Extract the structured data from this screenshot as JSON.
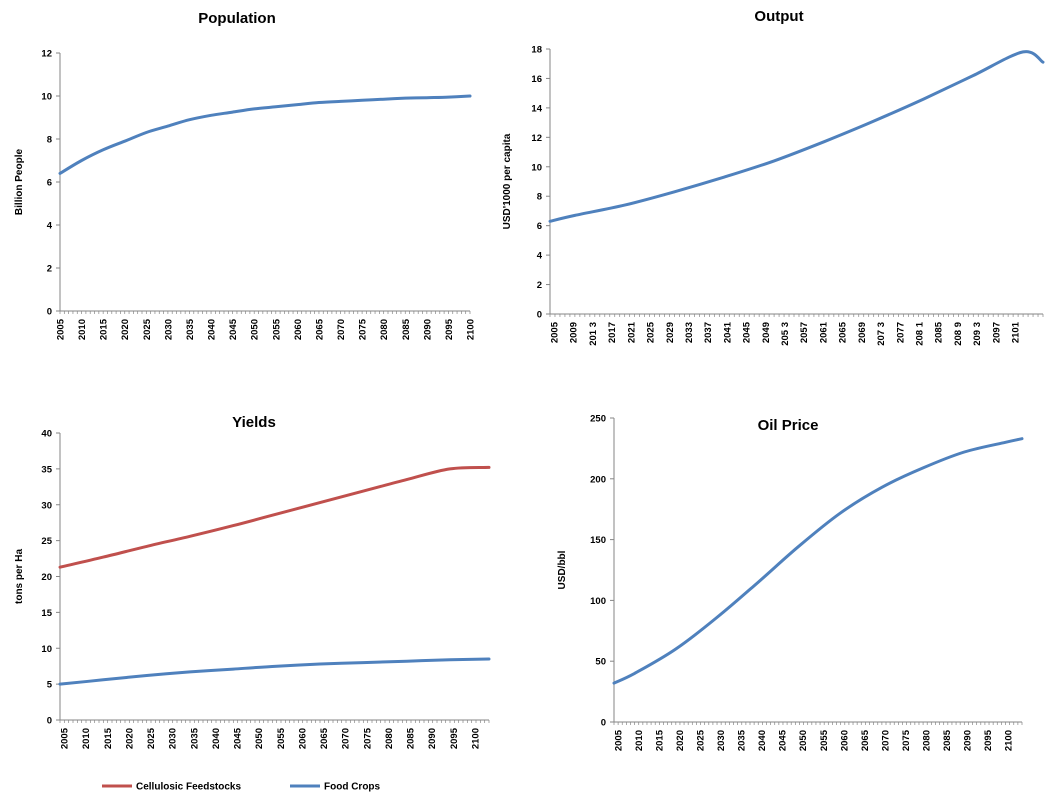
{
  "chart_data": [
    {
      "id": "population",
      "type": "line",
      "title": "Population",
      "ylabel": "Billion People",
      "ylim": [
        0,
        12
      ],
      "yticks": [
        0,
        2,
        4,
        6,
        8,
        10,
        12
      ],
      "xlim": [
        2005,
        2100
      ],
      "xticks": [
        "2005",
        "2010",
        "2015",
        "2020",
        "2025",
        "2030",
        "2035",
        "2040",
        "2045",
        "2050",
        "2055",
        "2060",
        "2065",
        "2070",
        "2075",
        "2080",
        "2085",
        "2090",
        "2095",
        "2100"
      ],
      "legend": "none",
      "grid": false,
      "series": [
        {
          "color": "#4f81bd",
          "x": [
            2005,
            2010,
            2015,
            2020,
            2025,
            2030,
            2035,
            2040,
            2045,
            2050,
            2055,
            2060,
            2065,
            2070,
            2075,
            2080,
            2085,
            2090,
            2095,
            2100
          ],
          "y": [
            6.4,
            7.0,
            7.5,
            7.9,
            8.3,
            8.6,
            8.9,
            9.1,
            9.25,
            9.4,
            9.5,
            9.6,
            9.7,
            9.75,
            9.8,
            9.85,
            9.9,
            9.92,
            9.95,
            10.0
          ]
        }
      ]
    },
    {
      "id": "output",
      "type": "line",
      "title": "Output",
      "ylabel": "USD'1000 per capita",
      "ylim": [
        0,
        18
      ],
      "yticks": [
        0,
        2,
        4,
        6,
        8,
        10,
        12,
        14,
        16,
        18
      ],
      "xlim": [
        2005,
        2104
      ],
      "xticks": [
        "2005",
        "2009",
        "201 3",
        "2017",
        "2021",
        "2025",
        "2029",
        "2033",
        "2037",
        "2041",
        "2045",
        "2049",
        "205 3",
        "2057",
        "2061",
        "2065",
        "2069",
        "207 3",
        "2077",
        "208 1",
        "2085",
        "208 9",
        "209 3",
        "2097",
        "2101"
      ],
      "legend": "none",
      "grid": false,
      "series": [
        {
          "color": "#4f81bd",
          "x": [
            2005,
            2010,
            2020,
            2030,
            2040,
            2050,
            2060,
            2070,
            2080,
            2090,
            2100,
            2104
          ],
          "y": [
            6.3,
            6.7,
            7.4,
            8.3,
            9.3,
            10.4,
            11.7,
            13.1,
            14.6,
            16.2,
            17.8,
            17.1
          ]
        }
      ]
    },
    {
      "id": "yields",
      "type": "line",
      "title": "Yields",
      "ylabel": "tons per Ha",
      "ylim": [
        0,
        40
      ],
      "yticks": [
        0,
        5,
        10,
        15,
        20,
        25,
        30,
        35,
        40
      ],
      "xlim": [
        2005,
        2104
      ],
      "xticks": [
        "2005",
        "2010",
        "2015",
        "2020",
        "2025",
        "2030",
        "2035",
        "2040",
        "2045",
        "2050",
        "2055",
        "2060",
        "2065",
        "2070",
        "2075",
        "2080",
        "2085",
        "2090",
        "2095",
        "2100"
      ],
      "legend": "bottom",
      "grid": false,
      "series": [
        {
          "name": "Cellulosic Feedstocks",
          "color": "#c0504d",
          "x": [
            2005,
            2015,
            2025,
            2035,
            2045,
            2055,
            2065,
            2075,
            2085,
            2095,
            2104
          ],
          "y": [
            21.3,
            22.7,
            24.2,
            25.6,
            27.1,
            28.7,
            30.3,
            31.9,
            33.5,
            35.0,
            35.2
          ]
        },
        {
          "name": "Food Crops",
          "color": "#4f81bd",
          "x": [
            2005,
            2015,
            2025,
            2035,
            2045,
            2055,
            2065,
            2075,
            2085,
            2095,
            2104
          ],
          "y": [
            5.0,
            5.6,
            6.2,
            6.7,
            7.1,
            7.5,
            7.8,
            8.0,
            8.2,
            8.4,
            8.5
          ]
        }
      ]
    },
    {
      "id": "oil-price",
      "type": "line",
      "title": "Oil Price",
      "ylabel": "USD/bbl",
      "ylim": [
        0,
        250
      ],
      "yticks": [
        0,
        50,
        100,
        150,
        200,
        250
      ],
      "xlim": [
        2005,
        2104
      ],
      "xticks": [
        "2005",
        "2010",
        "2015",
        "2020",
        "2025",
        "2030",
        "2035",
        "2040",
        "2045",
        "2050",
        "2055",
        "2060",
        "2065",
        "2070",
        "2075",
        "2080",
        "2085",
        "2090",
        "2095",
        "2100"
      ],
      "legend": "none",
      "grid": false,
      "series": [
        {
          "color": "#4f81bd",
          "x": [
            2005,
            2010,
            2020,
            2030,
            2040,
            2050,
            2060,
            2070,
            2080,
            2090,
            2100,
            2104
          ],
          "y": [
            32,
            40,
            60,
            86,
            115,
            145,
            172,
            193,
            209,
            222,
            230,
            233
          ]
        }
      ]
    }
  ]
}
